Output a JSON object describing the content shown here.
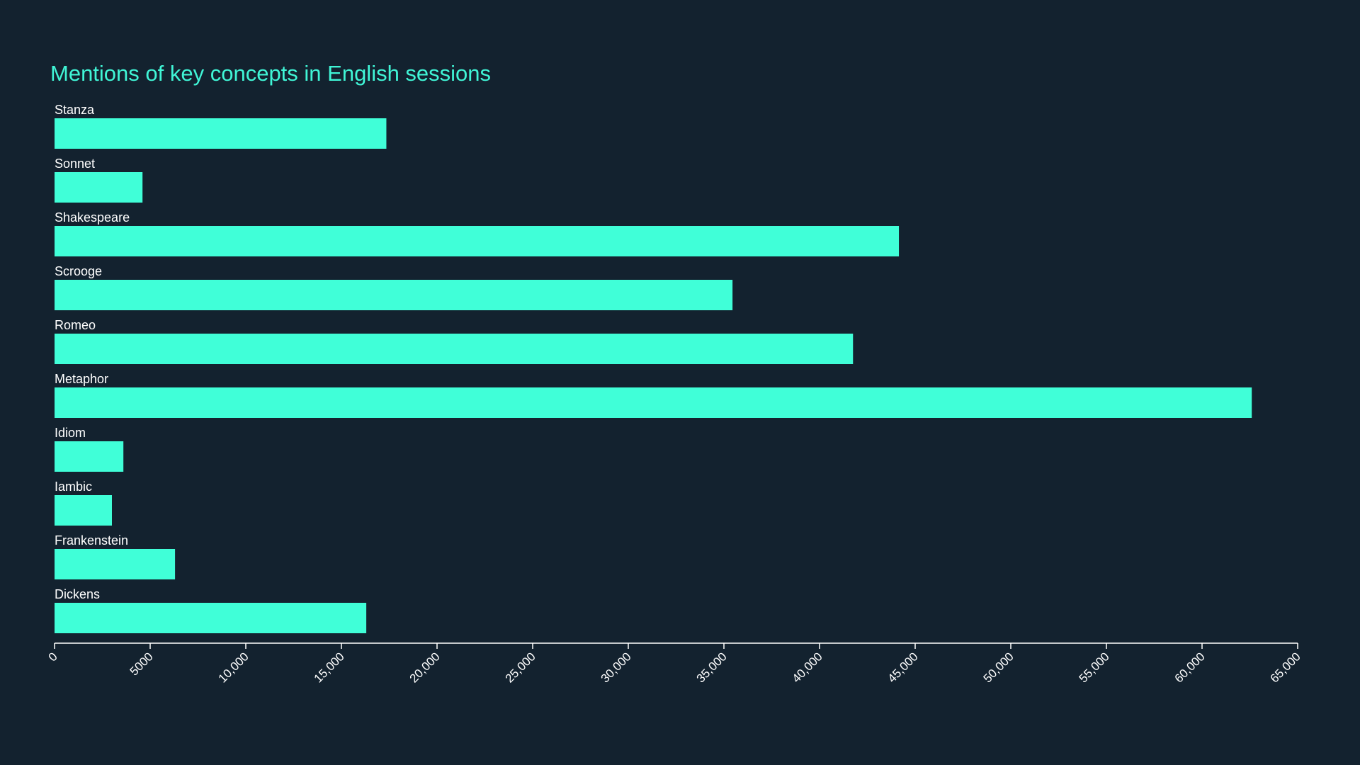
{
  "chart_data": {
    "type": "bar",
    "orientation": "horizontal",
    "title": "Mentions of key concepts in English sessions",
    "xlabel": "",
    "ylabel": "",
    "categories": [
      "Stanza",
      "Sonnet",
      "Shakespeare",
      "Scrooge",
      "Romeo",
      "Metaphor",
      "Idiom",
      "Iambic",
      "Frankenstein",
      "Dickens"
    ],
    "values": [
      17350,
      4600,
      44150,
      35450,
      41750,
      62600,
      3600,
      3000,
      6300,
      16300
    ],
    "xlim": [
      0,
      65000
    ],
    "ticks": [
      0,
      5000,
      10000,
      15000,
      20000,
      25000,
      30000,
      35000,
      40000,
      45000,
      50000,
      55000,
      60000,
      65000
    ],
    "tick_labels": [
      "0",
      "5000",
      "10,000",
      "15,000",
      "20,000",
      "25,000",
      "30,000",
      "35,000",
      "40,000",
      "45,000",
      "50,000",
      "55,000",
      "60,000",
      "65,000"
    ],
    "grid": false,
    "legend": "none",
    "colors": {
      "background": "#13222f",
      "bar": "#40ffd8",
      "title": "#40f5d6",
      "text": "#ffffff",
      "axis": "#ffffff"
    }
  }
}
